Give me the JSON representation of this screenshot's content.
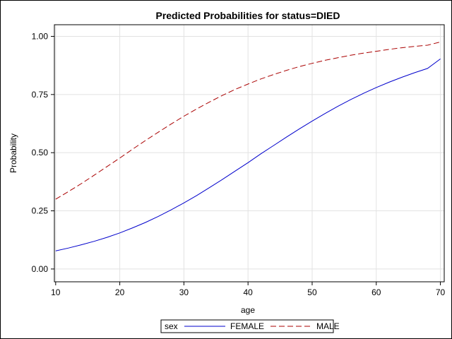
{
  "chart_data": {
    "type": "line",
    "title": "Predicted Probabilities for status=DIED",
    "xlabel": "age",
    "ylabel": "Probability",
    "xlim": [
      10,
      70
    ],
    "ylim": [
      0.0,
      1.0
    ],
    "x_ticks": [
      10,
      20,
      30,
      40,
      50,
      60,
      70
    ],
    "x_tick_labels": [
      "10",
      "20",
      "30",
      "40",
      "50",
      "60",
      "70"
    ],
    "y_ticks": [
      0.0,
      0.25,
      0.5,
      0.75,
      1.0
    ],
    "y_tick_labels": [
      "0.00",
      "0.25",
      "0.50",
      "0.75",
      "1.00"
    ],
    "grid": true,
    "legend": {
      "title": "sex",
      "placement": "bottom-center"
    },
    "x": [
      10,
      12,
      14,
      16,
      18,
      20,
      22,
      24,
      26,
      28,
      30,
      32,
      34,
      36,
      38,
      40,
      42,
      44,
      46,
      48,
      50,
      52,
      54,
      56,
      58,
      60,
      62,
      64,
      66,
      68,
      70
    ],
    "series": [
      {
        "name": "FEMALE",
        "color": "#0000cc",
        "dash": "solid",
        "values": [
          0.078,
          0.09,
          0.104,
          0.119,
          0.136,
          0.155,
          0.177,
          0.2,
          0.226,
          0.254,
          0.284,
          0.316,
          0.35,
          0.385,
          0.421,
          0.457,
          0.495,
          0.531,
          0.567,
          0.602,
          0.636,
          0.668,
          0.699,
          0.728,
          0.755,
          0.78,
          0.803,
          0.824,
          0.844,
          0.862,
          0.903
        ]
      },
      {
        "name": "MALE",
        "color": "#aa0000",
        "dash": "dashed",
        "values": [
          0.3,
          0.333,
          0.367,
          0.403,
          0.44,
          0.477,
          0.515,
          0.552,
          0.588,
          0.623,
          0.657,
          0.688,
          0.718,
          0.746,
          0.772,
          0.795,
          0.817,
          0.836,
          0.854,
          0.87,
          0.884,
          0.897,
          0.908,
          0.919,
          0.928,
          0.936,
          0.944,
          0.951,
          0.957,
          0.962,
          0.976
        ]
      }
    ]
  }
}
